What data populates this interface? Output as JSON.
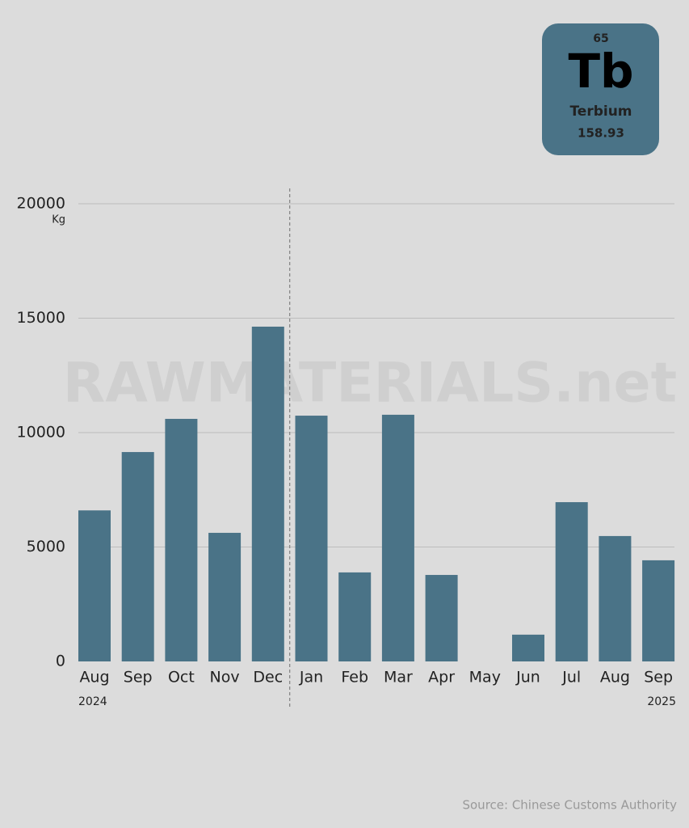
{
  "chart_data": {
    "type": "bar",
    "categories": [
      "Aug",
      "Sep",
      "Oct",
      "Nov",
      "Dec",
      "Jan",
      "Feb",
      "Mar",
      "Apr",
      "May",
      "Jun",
      "Jul",
      "Aug",
      "Sep"
    ],
    "values": [
      6600,
      9150,
      10600,
      5620,
      14630,
      10740,
      3890,
      10780,
      3780,
      0,
      1170,
      6960,
      5480,
      4420
    ],
    "color": "#4a7387",
    "ylim": [
      0,
      20000
    ],
    "yticks": [
      0,
      5000,
      10000,
      15000,
      20000
    ],
    "grid": true,
    "y_unit": "Kg",
    "period_labels": [
      "2024",
      "2025"
    ]
  },
  "element": {
    "number": "65",
    "symbol": "Tb",
    "name": "Terbium",
    "mass": "158.93"
  },
  "watermark": "RAWMATERIALS.net",
  "source": "Source: Chinese Customs Authority"
}
